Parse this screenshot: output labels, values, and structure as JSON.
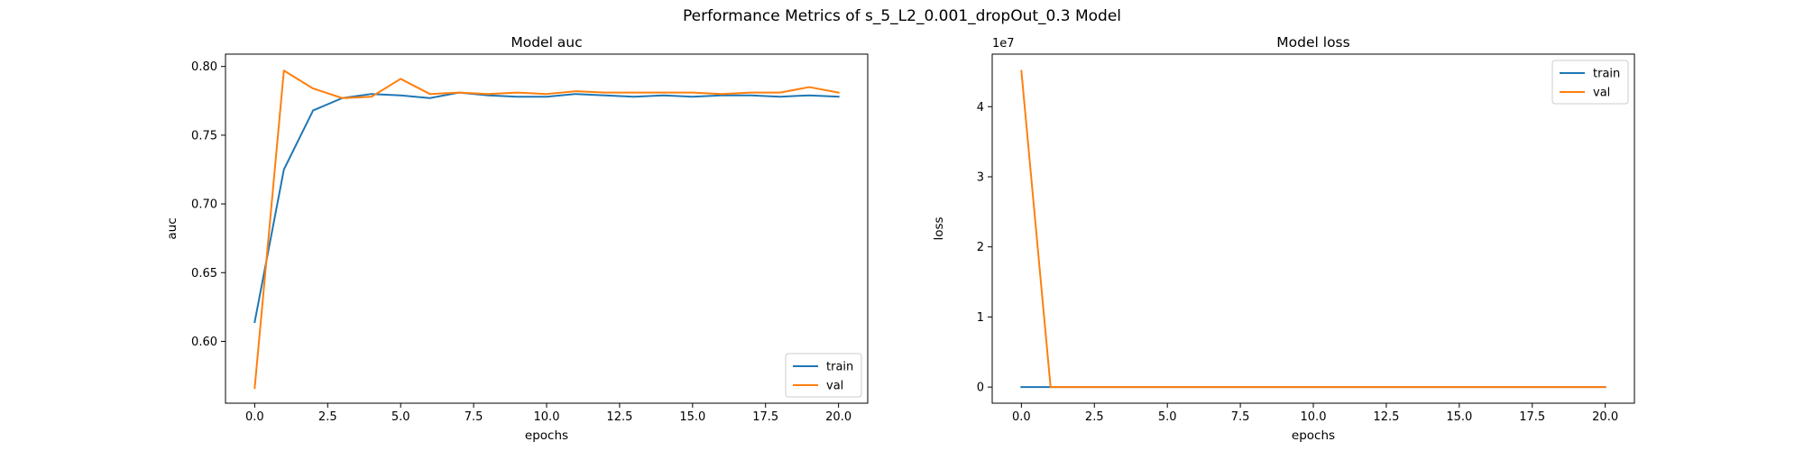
{
  "figure": {
    "suptitle": "Performance Metrics of s_5_L2_0.001_dropOut_0.3 Model"
  },
  "colors": {
    "train": "#1f77b4",
    "val": "#ff7f0e"
  },
  "chart_data": [
    {
      "type": "line",
      "title": "Model auc",
      "xlabel": "epochs",
      "ylabel": "auc",
      "xlim": [
        -1,
        21
      ],
      "ylim": [
        0.555,
        0.809
      ],
      "xticks": [
        0.0,
        2.5,
        5.0,
        7.5,
        10.0,
        12.5,
        15.0,
        17.5,
        20.0
      ],
      "xtick_labels": [
        "0.0",
        "2.5",
        "5.0",
        "7.5",
        "10.0",
        "12.5",
        "15.0",
        "17.5",
        "20.0"
      ],
      "yticks": [
        0.6,
        0.65,
        0.7,
        0.75,
        0.8
      ],
      "ytick_labels": [
        "0.60",
        "0.65",
        "0.70",
        "0.75",
        "0.80"
      ],
      "offset_label": "",
      "legend_loc": "lower-right",
      "x": [
        0,
        1,
        2,
        3,
        4,
        5,
        6,
        7,
        8,
        9,
        10,
        11,
        12,
        13,
        14,
        15,
        16,
        17,
        18,
        19,
        20
      ],
      "series": [
        {
          "name": "train",
          "values": [
            0.614,
            0.725,
            0.768,
            0.777,
            0.78,
            0.779,
            0.777,
            0.781,
            0.779,
            0.778,
            0.778,
            0.78,
            0.779,
            0.778,
            0.779,
            0.778,
            0.779,
            0.779,
            0.778,
            0.779,
            0.778
          ]
        },
        {
          "name": "val",
          "values": [
            0.566,
            0.797,
            0.784,
            0.777,
            0.778,
            0.791,
            0.78,
            0.781,
            0.78,
            0.781,
            0.78,
            0.782,
            0.781,
            0.781,
            0.781,
            0.781,
            0.78,
            0.781,
            0.781,
            0.785,
            0.781
          ]
        }
      ]
    },
    {
      "type": "line",
      "title": "Model loss",
      "xlabel": "epochs",
      "ylabel": "loss",
      "xlim": [
        -1,
        21
      ],
      "ylim": [
        -2300000,
        47500000
      ],
      "xticks": [
        0.0,
        2.5,
        5.0,
        7.5,
        10.0,
        12.5,
        15.0,
        17.5,
        20.0
      ],
      "xtick_labels": [
        "0.0",
        "2.5",
        "5.0",
        "7.5",
        "10.0",
        "12.5",
        "15.0",
        "17.5",
        "20.0"
      ],
      "yticks": [
        0,
        10000000,
        20000000,
        30000000,
        40000000
      ],
      "ytick_labels": [
        "0",
        "1",
        "2",
        "3",
        "4"
      ],
      "offset_label": "1e7",
      "legend_loc": "upper-right",
      "x": [
        0,
        1,
        2,
        3,
        4,
        5,
        6,
        7,
        8,
        9,
        10,
        11,
        12,
        13,
        14,
        15,
        16,
        17,
        18,
        19,
        20
      ],
      "series": [
        {
          "name": "train",
          "values": [
            0,
            0,
            0,
            0,
            0,
            0,
            0,
            0,
            0,
            0,
            0,
            0,
            0,
            0,
            0,
            0,
            0,
            0,
            0,
            0,
            0
          ]
        },
        {
          "name": "val",
          "values": [
            45100000,
            0,
            0,
            0,
            0,
            0,
            0,
            0,
            0,
            0,
            0,
            0,
            0,
            0,
            0,
            0,
            0,
            0,
            0,
            0,
            0
          ]
        }
      ]
    }
  ]
}
